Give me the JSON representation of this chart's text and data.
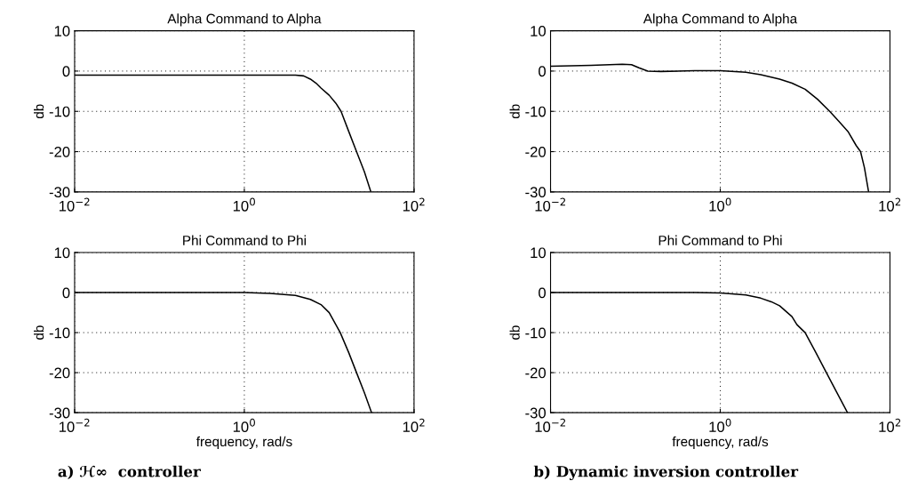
{
  "chart_data": [
    {
      "type": "line",
      "title": "Alpha Command to Alpha",
      "ylabel": "db",
      "log": "x",
      "grid": true,
      "xlim": [
        0.01,
        100
      ],
      "ylim": [
        -30,
        10
      ],
      "xticks": [
        {
          "value": 0.01,
          "label": "10$^{−2}$"
        },
        {
          "value": 1,
          "label": "10$^{0}$"
        },
        {
          "value": 100,
          "label": "10$^{2}$"
        }
      ],
      "yticks": [
        -30,
        -20,
        -10,
        0,
        10
      ],
      "series": [
        {
          "color": "#000000",
          "x": [
            0.01,
            1,
            4,
            5,
            6,
            7,
            8,
            10,
            12,
            13.8,
            17,
            21,
            26,
            31
          ],
          "values": [
            -1,
            -1,
            -1,
            -1.2,
            -2,
            -3,
            -4.2,
            -6,
            -8,
            -10,
            -15,
            -20,
            -25,
            -30
          ]
        }
      ]
    },
    {
      "type": "line",
      "title": "Alpha Command to Alpha",
      "ylabel": "db",
      "log": "x",
      "grid": true,
      "xlim": [
        0.01,
        100
      ],
      "ylim": [
        -30,
        10
      ],
      "xticks": [
        {
          "value": 0.01,
          "label": "10$^{−2}$"
        },
        {
          "value": 1,
          "label": "10$^{0}$"
        },
        {
          "value": 100,
          "label": "10$^{2}$"
        }
      ],
      "yticks": [
        -30,
        -20,
        -10,
        0,
        10
      ],
      "series": [
        {
          "color": "#000000",
          "x": [
            0.01,
            0.03,
            0.07,
            0.09,
            0.11,
            0.14,
            0.2,
            0.5,
            1,
            2,
            3,
            5,
            7,
            10,
            14,
            19.5,
            25,
            32,
            40,
            45,
            50,
            56
          ],
          "values": [
            1.2,
            1.4,
            1.7,
            1.6,
            0.8,
            0,
            -0.1,
            0.1,
            0.1,
            -0.3,
            -0.9,
            -2,
            -3,
            -4.5,
            -7,
            -10,
            -12.5,
            -15,
            -18.5,
            -20,
            -24,
            -30
          ]
        }
      ]
    },
    {
      "type": "line",
      "title": "Phi Command to Phi",
      "xlabel": "frequency, rad/s",
      "ylabel": "db",
      "log": "x",
      "grid": true,
      "xlim": [
        0.01,
        100
      ],
      "ylim": [
        -30,
        10
      ],
      "xticks": [
        {
          "value": 0.01,
          "label": "10$^{−2}$"
        },
        {
          "value": 1,
          "label": "10$^{0}$"
        },
        {
          "value": 100,
          "label": "10$^{2}$"
        }
      ],
      "yticks": [
        -30,
        -20,
        -10,
        0,
        10
      ],
      "annotations": [
        "a) ℋ∞  controller"
      ],
      "series": [
        {
          "color": "#000000",
          "x": [
            0.01,
            1,
            2,
            4,
            6,
            8,
            10,
            13.5,
            17,
            21,
            26,
            31.6
          ],
          "values": [
            0,
            0,
            -0.2,
            -0.7,
            -1.7,
            -3,
            -5,
            -10,
            -15,
            -20,
            -25,
            -30
          ]
        }
      ]
    },
    {
      "type": "line",
      "title": "Phi Command to Phi",
      "xlabel": "frequency, rad/s",
      "ylabel": "db",
      "log": "x",
      "grid": true,
      "xlim": [
        0.01,
        100
      ],
      "ylim": [
        -30,
        10
      ],
      "xticks": [
        {
          "value": 0.01,
          "label": "10$^{−2}$"
        },
        {
          "value": 1,
          "label": "10$^{0}$"
        },
        {
          "value": 100,
          "label": "10$^{2}$"
        }
      ],
      "yticks": [
        -30,
        -20,
        -10,
        0,
        10
      ],
      "annotations": [
        "b) Dynamic inversion controller"
      ],
      "series": [
        {
          "color": "#000000",
          "x": [
            0.01,
            0.5,
            1,
            2,
            3,
            4,
            5,
            7,
            8,
            10,
            13.4,
            17.8,
            23.7,
            31.6
          ],
          "values": [
            0,
            0,
            -0.1,
            -0.6,
            -1.4,
            -2.3,
            -3.3,
            -6,
            -8,
            -10,
            -15,
            -20,
            -25,
            -30
          ]
        }
      ]
    }
  ]
}
